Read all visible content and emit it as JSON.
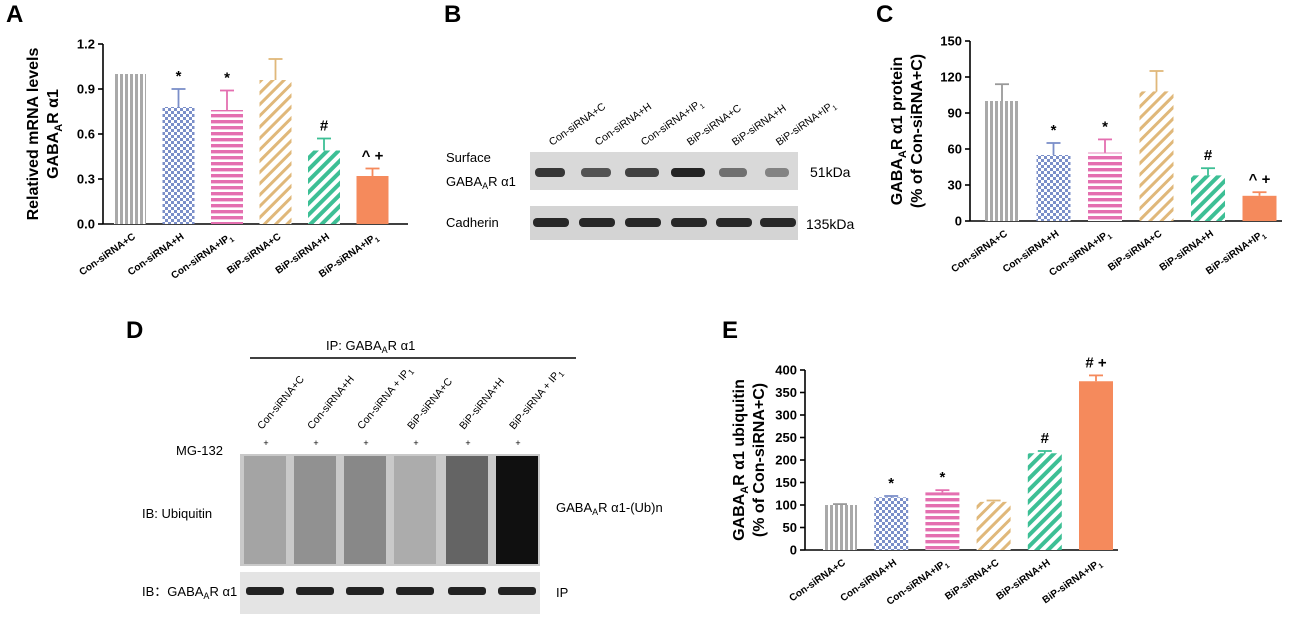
{
  "panels": {
    "A": "A",
    "B": "B",
    "C": "C",
    "D": "D",
    "E": "E"
  },
  "colors": {
    "gray": "#a9a9a9",
    "blue": "#7b8fc9",
    "pink": "#e46fb0",
    "tan": "#e0b87a",
    "green": "#3dbf95",
    "orange": "#f58a5c"
  },
  "chart_data": [
    {
      "id": "A",
      "type": "bar",
      "ylabel": "Relatived mRNA levels GABAAR α1",
      "ylabel_line1": "Relatived mRNA levels",
      "ylabel_line2_pre": "GABA",
      "ylabel_line2_sub": "A",
      "ylabel_line2_post": "R α1",
      "ylim": [
        0,
        1.2
      ],
      "yticks": [
        "0.0",
        "0.3",
        "0.6",
        "0.9",
        "1.2"
      ],
      "ytick_values": [
        0,
        0.3,
        0.6,
        0.9,
        1.2
      ],
      "categories": [
        "Con-siRNA+C",
        "Con-siRNA+H",
        "Con-siRNA+IP1",
        "BiP-siRNA+C",
        "BiP-siRNA+H",
        "BiP-siRNA+IP1"
      ],
      "values": [
        1.0,
        0.78,
        0.76,
        0.96,
        0.49,
        0.32
      ],
      "errors": [
        0.0,
        0.12,
        0.13,
        0.14,
        0.08,
        0.05
      ],
      "annotations": [
        "",
        "*",
        "*",
        "",
        "#",
        "^ +"
      ],
      "patterns": [
        "vstripe",
        "check",
        "hstripe",
        "diag",
        "diag",
        "solid"
      ],
      "colors": [
        "gray",
        "blue",
        "pink",
        "tan",
        "green",
        "orange"
      ]
    },
    {
      "id": "C",
      "type": "bar",
      "ylabel": "GABAAR α1 protein (% of Con-siRNA+C)",
      "ylabel_line1_pre": "GABA",
      "ylabel_line1_sub": "A",
      "ylabel_line1_post": "R α1 protein",
      "ylabel_line2": "(% of Con-siRNA+C)",
      "ylim": [
        0,
        150
      ],
      "yticks": [
        "0",
        "30",
        "60",
        "90",
        "120",
        "150"
      ],
      "ytick_values": [
        0,
        30,
        60,
        90,
        120,
        150
      ],
      "categories": [
        "Con-siRNA+C",
        "Con-siRNA+H",
        "Con-siRNA+IP1",
        "BiP-siRNA+C",
        "BiP-siRNA+H",
        "BiP-siRNA+IP1"
      ],
      "values": [
        100,
        55,
        57,
        108,
        38,
        21
      ],
      "errors": [
        14,
        10,
        11,
        17,
        6,
        3
      ],
      "annotations": [
        "",
        "*",
        "*",
        "",
        "#",
        "^ +"
      ],
      "patterns": [
        "vstripe",
        "check",
        "hstripe",
        "diag",
        "diag",
        "solid"
      ],
      "colors": [
        "gray",
        "blue",
        "pink",
        "tan",
        "green",
        "orange"
      ]
    },
    {
      "id": "E",
      "type": "bar",
      "ylabel": "GABAAR α1 ubiquitin (% of Con-siRNA+C)",
      "ylabel_line1_pre": "GABA",
      "ylabel_line1_sub": "A",
      "ylabel_line1_post": "R α1 ubiquitin",
      "ylabel_line2": "(% of Con-siRNA+C)",
      "ylim": [
        0,
        400
      ],
      "yticks": [
        "0",
        "50",
        "100",
        "150",
        "200",
        "250",
        "300",
        "350",
        "400"
      ],
      "ytick_values": [
        0,
        50,
        100,
        150,
        200,
        250,
        300,
        350,
        400
      ],
      "categories": [
        "Con-siRNA+C",
        "Con-siRNA+H",
        "Con-siRNA+IP1",
        "BiP-siRNA+C",
        "BiP-siRNA+H",
        "BiP-siRNA+IP1"
      ],
      "values": [
        100,
        117,
        128,
        107,
        215,
        375
      ],
      "errors": [
        2,
        3,
        5,
        3,
        5,
        13
      ],
      "annotations": [
        "",
        "*",
        "*",
        "",
        "#",
        "# +"
      ],
      "patterns": [
        "vstripe",
        "check",
        "hstripe",
        "diag",
        "diag",
        "solid"
      ],
      "colors": [
        "gray",
        "blue",
        "pink",
        "tan",
        "green",
        "orange"
      ]
    }
  ],
  "blot_B": {
    "lanes": [
      "Con-siRNA+C",
      "Con-siRNA+H",
      "Con-siRNA+IP1",
      "BiP-siRNA+C",
      "BiP-siRNA+H",
      "BiP-siRNA+IP1"
    ],
    "row1_label_a": "Surface",
    "row1_label_b_pre": "GABA",
    "row1_label_b_sub": "A",
    "row1_label_b_post": "R α1",
    "row2_label": "Cadherin",
    "row1_size": "51kDa",
    "row2_size": "135kDa"
  },
  "blot_D": {
    "ip_header_pre": "IP: GABA",
    "ip_header_sub": "A",
    "ip_header_post": "R α1",
    "lanes": [
      "Con-siRNA+C",
      "Con-siRNA+H",
      "Con-siRNA + IP1",
      "BiP-siRNA+C",
      "BiP-siRNA+H",
      "BiP-siRNA + IP1"
    ],
    "mg_label": "MG-132",
    "mg_marks": [
      "+",
      "+",
      "+",
      "+",
      "+",
      "+"
    ],
    "row1_label": "IB: Ubiquitin",
    "row2_label_pre": "IB：GABA",
    "row2_label_sub": "A",
    "row2_label_post": "R α1",
    "row1_right_pre": "GABA",
    "row1_right_sub": "A",
    "row1_right_post": "R α1-(Ub)n",
    "row2_right": "IP"
  }
}
